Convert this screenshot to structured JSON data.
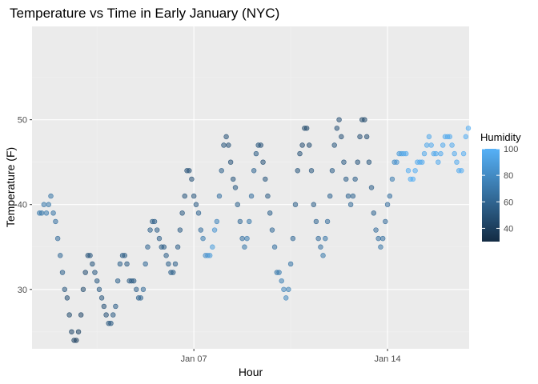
{
  "chart_data": {
    "type": "scatter",
    "title": "Temperature vs Time in Early January (NYC)",
    "xlabel": "Hour",
    "ylabel": "Temperature (F)",
    "x_unit": "days since Jan 1 00:00",
    "xlim": [
      0.15,
      15.95
    ],
    "ylim": [
      23,
      61
    ],
    "x_major_ticks": [
      {
        "value": 6,
        "label": "Jan 07"
      },
      {
        "value": 13,
        "label": "Jan 14"
      }
    ],
    "x_minor_ticks": [
      2.5,
      9.5
    ],
    "y_major_ticks": [
      30,
      40,
      50
    ],
    "y_minor_ticks": [
      25,
      35,
      45,
      55
    ],
    "color_legend": {
      "title": "Humidity",
      "range": [
        30,
        100
      ],
      "low_color": "#132B43",
      "high_color": "#56B1F7",
      "ticks": [
        40,
        60,
        80,
        100
      ]
    },
    "point_color_scale": "humidity",
    "point_opacity": 0.55,
    "panel_background": "#EBEBEB",
    "series_points": [
      [
        0.42,
        39,
        70
      ],
      [
        0.5,
        39,
        70
      ],
      [
        0.58,
        40,
        70
      ],
      [
        0.67,
        39,
        72
      ],
      [
        0.75,
        40,
        70
      ],
      [
        0.83,
        41,
        68
      ],
      [
        0.92,
        39,
        68
      ],
      [
        1.0,
        38,
        66
      ],
      [
        1.08,
        36,
        64
      ],
      [
        1.17,
        34,
        62
      ],
      [
        1.25,
        32,
        58
      ],
      [
        1.33,
        30,
        52
      ],
      [
        1.42,
        29,
        48
      ],
      [
        1.5,
        27,
        46
      ],
      [
        1.58,
        25,
        44
      ],
      [
        1.67,
        24,
        42
      ],
      [
        1.75,
        24,
        40
      ],
      [
        1.83,
        25,
        42
      ],
      [
        1.92,
        27,
        44
      ],
      [
        2.0,
        30,
        46
      ],
      [
        2.08,
        32,
        48
      ],
      [
        2.17,
        34,
        50
      ],
      [
        2.25,
        34,
        52
      ],
      [
        2.33,
        33,
        52
      ],
      [
        2.42,
        32,
        54
      ],
      [
        2.5,
        31,
        54
      ],
      [
        2.58,
        30,
        54
      ],
      [
        2.67,
        29,
        52
      ],
      [
        2.75,
        28,
        50
      ],
      [
        2.83,
        27,
        50
      ],
      [
        2.92,
        26,
        52
      ],
      [
        3.0,
        26,
        54
      ],
      [
        3.08,
        27,
        55
      ],
      [
        3.17,
        28,
        56
      ],
      [
        3.25,
        31,
        58
      ],
      [
        3.33,
        33,
        58
      ],
      [
        3.42,
        34,
        56
      ],
      [
        3.5,
        34,
        55
      ],
      [
        3.58,
        33,
        55
      ],
      [
        3.67,
        31,
        55
      ],
      [
        3.75,
        31,
        55
      ],
      [
        3.83,
        31,
        55
      ],
      [
        3.92,
        30,
        56
      ],
      [
        4.0,
        29,
        58
      ],
      [
        4.08,
        29,
        60
      ],
      [
        4.17,
        30,
        62
      ],
      [
        4.25,
        33,
        62
      ],
      [
        4.33,
        35,
        60
      ],
      [
        4.42,
        37,
        58
      ],
      [
        4.5,
        38,
        56
      ],
      [
        4.58,
        38,
        56
      ],
      [
        4.67,
        37,
        56
      ],
      [
        4.75,
        36,
        56
      ],
      [
        4.83,
        35,
        56
      ],
      [
        4.92,
        35,
        56
      ],
      [
        5.0,
        34,
        56
      ],
      [
        5.08,
        33,
        58
      ],
      [
        5.17,
        32,
        58
      ],
      [
        5.25,
        32,
        58
      ],
      [
        5.33,
        33,
        57
      ],
      [
        5.42,
        35,
        56
      ],
      [
        5.5,
        37,
        55
      ],
      [
        5.58,
        39,
        54
      ],
      [
        5.67,
        41,
        52
      ],
      [
        5.75,
        44,
        50
      ],
      [
        5.83,
        44,
        50
      ],
      [
        5.92,
        43,
        50
      ],
      [
        6.0,
        41,
        52
      ],
      [
        6.08,
        40,
        55
      ],
      [
        6.17,
        39,
        60
      ],
      [
        6.25,
        37,
        65
      ],
      [
        6.33,
        36,
        72
      ],
      [
        6.42,
        34,
        80
      ],
      [
        6.5,
        34,
        85
      ],
      [
        6.58,
        34,
        88
      ],
      [
        6.67,
        35,
        90
      ],
      [
        6.75,
        37,
        85
      ],
      [
        6.83,
        38,
        76
      ],
      [
        6.92,
        41,
        66
      ],
      [
        7.0,
        44,
        58
      ],
      [
        7.08,
        47,
        52
      ],
      [
        7.17,
        48,
        50
      ],
      [
        7.25,
        47,
        50
      ],
      [
        7.33,
        45,
        50
      ],
      [
        7.42,
        43,
        52
      ],
      [
        7.5,
        42,
        54
      ],
      [
        7.58,
        40,
        58
      ],
      [
        7.67,
        38,
        62
      ],
      [
        7.75,
        36,
        66
      ],
      [
        7.83,
        35,
        70
      ],
      [
        7.92,
        36,
        72
      ],
      [
        8.0,
        38,
        70
      ],
      [
        8.08,
        41,
        65
      ],
      [
        8.17,
        44,
        60
      ],
      [
        8.25,
        46,
        55
      ],
      [
        8.33,
        47,
        52
      ],
      [
        8.42,
        47,
        50
      ],
      [
        8.5,
        45,
        50
      ],
      [
        8.58,
        43,
        52
      ],
      [
        8.67,
        41,
        55
      ],
      [
        8.75,
        39,
        58
      ],
      [
        8.83,
        37,
        62
      ],
      [
        8.92,
        35,
        66
      ],
      [
        9.0,
        32,
        70
      ],
      [
        9.08,
        32,
        72
      ],
      [
        9.17,
        31,
        74
      ],
      [
        9.25,
        30,
        76
      ],
      [
        9.33,
        29,
        78
      ],
      [
        9.42,
        30,
        74
      ],
      [
        9.5,
        33,
        68
      ],
      [
        9.58,
        36,
        62
      ],
      [
        9.67,
        40,
        56
      ],
      [
        9.75,
        44,
        52
      ],
      [
        9.83,
        46,
        50
      ],
      [
        9.92,
        47,
        48
      ],
      [
        10.0,
        49,
        46
      ],
      [
        10.08,
        49,
        46
      ],
      [
        10.17,
        47,
        48
      ],
      [
        10.25,
        44,
        52
      ],
      [
        10.33,
        40,
        56
      ],
      [
        10.42,
        38,
        60
      ],
      [
        10.5,
        36,
        64
      ],
      [
        10.58,
        35,
        66
      ],
      [
        10.67,
        34,
        70
      ],
      [
        10.75,
        36,
        68
      ],
      [
        10.83,
        38,
        64
      ],
      [
        10.92,
        41,
        60
      ],
      [
        11.0,
        44,
        56
      ],
      [
        11.08,
        47,
        52
      ],
      [
        11.17,
        49,
        50
      ],
      [
        11.25,
        50,
        48
      ],
      [
        11.33,
        48,
        50
      ],
      [
        11.42,
        45,
        54
      ],
      [
        11.5,
        43,
        56
      ],
      [
        11.58,
        41,
        60
      ],
      [
        11.67,
        40,
        62
      ],
      [
        11.75,
        41,
        60
      ],
      [
        11.83,
        43,
        56
      ],
      [
        11.92,
        45,
        52
      ],
      [
        12.0,
        48,
        48
      ],
      [
        12.08,
        50,
        46
      ],
      [
        12.17,
        50,
        46
      ],
      [
        12.25,
        48,
        48
      ],
      [
        12.33,
        45,
        52
      ],
      [
        12.42,
        42,
        56
      ],
      [
        12.5,
        39,
        60
      ],
      [
        12.58,
        37,
        64
      ],
      [
        12.67,
        36,
        66
      ],
      [
        12.75,
        35,
        68
      ],
      [
        12.83,
        36,
        66
      ],
      [
        12.92,
        38,
        64
      ],
      [
        13.0,
        40,
        64
      ],
      [
        13.08,
        41,
        66
      ],
      [
        13.17,
        43,
        72
      ],
      [
        13.25,
        45,
        80
      ],
      [
        13.33,
        45,
        85
      ],
      [
        13.42,
        46,
        88
      ],
      [
        13.5,
        46,
        90
      ],
      [
        13.58,
        46,
        94
      ],
      [
        13.67,
        46,
        96
      ],
      [
        13.75,
        44,
        98
      ],
      [
        13.83,
        43,
        98
      ],
      [
        13.92,
        43,
        98
      ],
      [
        14.0,
        44,
        98
      ],
      [
        14.08,
        45,
        96
      ],
      [
        14.17,
        45,
        96
      ],
      [
        14.25,
        45,
        96
      ],
      [
        14.33,
        46,
        95
      ],
      [
        14.42,
        47,
        95
      ],
      [
        14.5,
        48,
        95
      ],
      [
        14.58,
        47,
        96
      ],
      [
        14.67,
        46,
        96
      ],
      [
        14.75,
        46,
        96
      ],
      [
        14.83,
        45,
        96
      ],
      [
        14.92,
        46,
        96
      ],
      [
        15.0,
        47,
        96
      ],
      [
        15.08,
        48,
        96
      ],
      [
        15.17,
        48,
        96
      ],
      [
        15.25,
        48,
        96
      ],
      [
        15.33,
        47,
        96
      ],
      [
        15.42,
        46,
        96
      ],
      [
        15.5,
        45,
        96
      ],
      [
        15.58,
        44,
        96
      ],
      [
        15.67,
        44,
        98
      ],
      [
        15.75,
        46,
        98
      ],
      [
        15.83,
        48,
        98
      ],
      [
        15.92,
        49,
        98
      ]
    ]
  }
}
